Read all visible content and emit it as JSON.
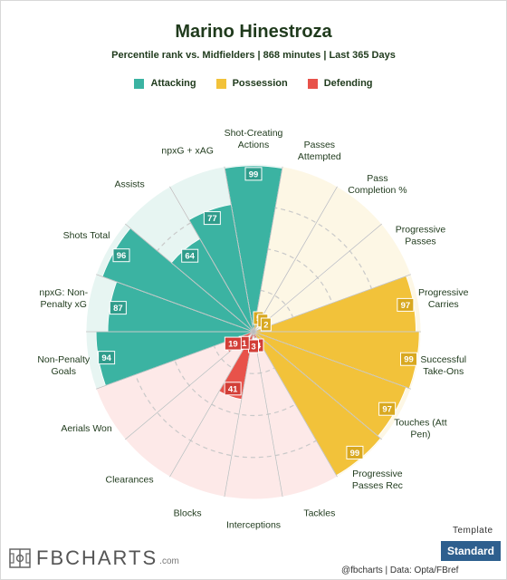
{
  "title": "Marino Hinestroza",
  "subtitle": "Percentile rank vs. Midfielders | 868 minutes | Last 365 Days",
  "legend": [
    {
      "label": "Attacking",
      "color": "#3bb3a2"
    },
    {
      "label": "Possession",
      "color": "#f2c23a"
    },
    {
      "label": "Defending",
      "color": "#e8524a"
    }
  ],
  "colors": {
    "Attacking": {
      "bar": "#3bb3a2",
      "bg": "#e7f5f2",
      "box": "#2f9c8b"
    },
    "Possession": {
      "bar": "#f2c23a",
      "bg": "#fdf7e5",
      "box": "#d8a820"
    },
    "Defending": {
      "bar": "#e8524a",
      "bg": "#fde9e8",
      "box": "#d23e37"
    }
  },
  "chart_data": {
    "type": "polar-bar",
    "rlim": [
      0,
      100
    ],
    "categories": [
      {
        "label": "Shot-Creating\nActions",
        "value": 99,
        "group": "Attacking"
      },
      {
        "label": "Passes\nAttempted",
        "value": 5,
        "group": "Possession"
      },
      {
        "label": "Pass\nCompletion %",
        "value": 1,
        "group": "Possession"
      },
      {
        "label": "Progressive\nPasses",
        "value": 2,
        "group": "Possession"
      },
      {
        "label": "Progressive\nCarries",
        "value": 97,
        "group": "Possession"
      },
      {
        "label": "Successful\nTake-Ons",
        "value": 99,
        "group": "Possession"
      },
      {
        "label": "Touches (Att\nPen)",
        "value": 97,
        "group": "Possession"
      },
      {
        "label": "Progressive\nPasses Rec",
        "value": 99,
        "group": "Possession"
      },
      {
        "label": "Tackles",
        "value": 4,
        "group": "Defending"
      },
      {
        "label": "Interceptions",
        "value": 3,
        "group": "Defending"
      },
      {
        "label": "Blocks",
        "value": 41,
        "group": "Defending"
      },
      {
        "label": "Clearances",
        "value": 1,
        "group": "Defending"
      },
      {
        "label": "Aerials Won",
        "value": 19,
        "group": "Defending"
      },
      {
        "label": "Non-Penalty\nGoals",
        "value": 94,
        "group": "Attacking"
      },
      {
        "label": "npxG: Non-\nPenalty xG",
        "value": 87,
        "group": "Attacking"
      },
      {
        "label": "Shots Total",
        "value": 96,
        "group": "Attacking"
      },
      {
        "label": "Assists",
        "value": 64,
        "group": "Attacking"
      },
      {
        "label": "npxG + xAG",
        "value": 77,
        "group": "Attacking"
      }
    ]
  },
  "template": {
    "label": "Template",
    "button": "Standard"
  },
  "logo": {
    "text": "FBCHARTS",
    "suffix": ".com"
  },
  "credit": "@fbcharts  |  Data: Opta/FBref"
}
